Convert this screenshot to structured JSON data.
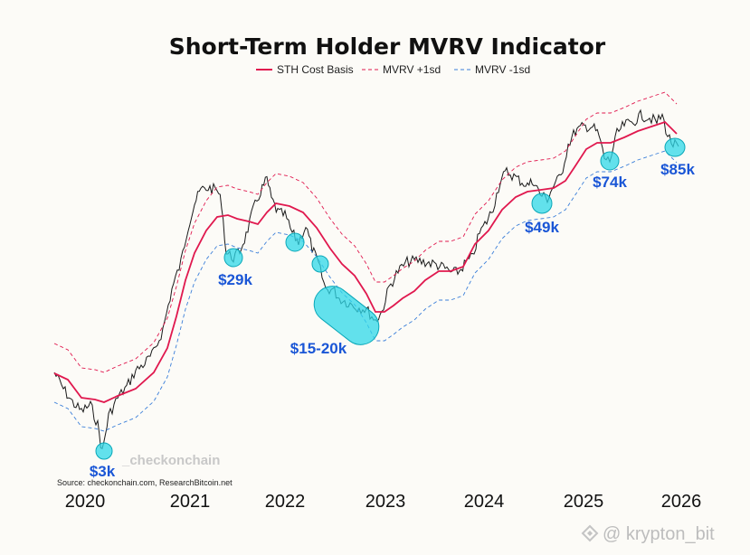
{
  "chart_data": {
    "type": "line",
    "title": "Short-Term Holder MVRV Indicator",
    "legend": [
      {
        "name": "STH Cost Basis",
        "color": "#e0184e",
        "style": "solid"
      },
      {
        "name": "MVRV +1sd",
        "color": "#e0184e",
        "style": "dashed"
      },
      {
        "name": "MVRV -1sd",
        "color": "#3b7fd9",
        "style": "dashed"
      }
    ],
    "legend_position": "top-center",
    "x_ticks": [
      "2020",
      "2021",
      "2022",
      "2023",
      "2024",
      "2025",
      "2026"
    ],
    "xlim": [
      2019.45,
      2026.15
    ],
    "grid": false,
    "annotations": [
      {
        "label": "$3k",
        "x": 2020.22
      },
      {
        "label": "$29k",
        "x": 2021.45
      },
      {
        "label": "$15-20k",
        "x": 2022.35
      },
      {
        "label": "$49k",
        "x": 2024.55
      },
      {
        "label": "$74k",
        "x": 2025.25
      },
      {
        "label": "$85k",
        "x": 2025.92
      }
    ],
    "source": "Source: checkonchain.com, ResearchBitcoin.net",
    "brand": "_checkonchain",
    "watermark": "@ krypton_bit"
  }
}
